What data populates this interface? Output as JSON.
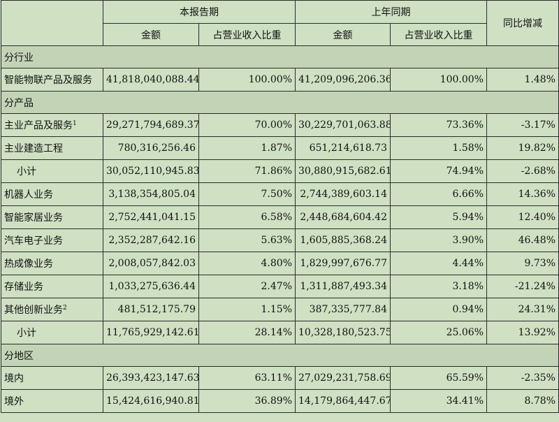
{
  "header": {
    "current_period": "本报告期",
    "prior_period": "上年同期",
    "yoy_change": "同比增减",
    "amount": "金额",
    "share": "占营业收入比重"
  },
  "sections": [
    {
      "title": "分行业",
      "rows": [
        {
          "label": "智能物联产品及服务",
          "note": "",
          "indent": false,
          "cur_amount": "41,818,040,088.44",
          "cur_share": "100.00%",
          "prev_amount": "41,209,096,206.36",
          "prev_share": "100.00%",
          "yoy": "1.48%"
        }
      ]
    },
    {
      "title": "分产品",
      "rows": [
        {
          "label": "主业产品及服务",
          "note": "1",
          "indent": false,
          "cur_amount": "29,271,794,689.37",
          "cur_share": "70.00%",
          "prev_amount": "30,229,701,063.88",
          "prev_share": "73.36%",
          "yoy": "-3.17%"
        },
        {
          "label": "主业建造工程",
          "note": "",
          "indent": false,
          "cur_amount": "780,316,256.46",
          "cur_share": "1.87%",
          "prev_amount": "651,214,618.73",
          "prev_share": "1.58%",
          "yoy": "19.82%"
        },
        {
          "label": "小计",
          "note": "",
          "indent": true,
          "cur_amount": "30,052,110,945.83",
          "cur_share": "71.86%",
          "prev_amount": "30,880,915,682.61",
          "prev_share": "74.94%",
          "yoy": "-2.68%"
        },
        {
          "label": "机器人业务",
          "note": "",
          "indent": false,
          "cur_amount": "3,138,354,805.04",
          "cur_share": "7.50%",
          "prev_amount": "2,744,389,603.14",
          "prev_share": "6.66%",
          "yoy": "14.36%"
        },
        {
          "label": "智能家居业务",
          "note": "",
          "indent": false,
          "cur_amount": "2,752,441,041.15",
          "cur_share": "6.58%",
          "prev_amount": "2,448,684,604.42",
          "prev_share": "5.94%",
          "yoy": "12.40%"
        },
        {
          "label": "汽车电子业务",
          "note": "",
          "indent": false,
          "cur_amount": "2,352,287,642.16",
          "cur_share": "5.63%",
          "prev_amount": "1,605,885,368.24",
          "prev_share": "3.90%",
          "yoy": "46.48%"
        },
        {
          "label": "热成像业务",
          "note": "",
          "indent": false,
          "cur_amount": "2,008,057,842.03",
          "cur_share": "4.80%",
          "prev_amount": "1,829,997,676.77",
          "prev_share": "4.44%",
          "yoy": "9.73%"
        },
        {
          "label": "存储业务",
          "note": "",
          "indent": false,
          "cur_amount": "1,033,275,636.44",
          "cur_share": "2.47%",
          "prev_amount": "1,311,887,493.34",
          "prev_share": "3.18%",
          "yoy": "-21.24%"
        },
        {
          "label": "其他创新业务",
          "note": "2",
          "indent": false,
          "cur_amount": "481,512,175.79",
          "cur_share": "1.15%",
          "prev_amount": "387,335,777.84",
          "prev_share": "0.94%",
          "yoy": "24.31%"
        },
        {
          "label": "小计",
          "note": "",
          "indent": true,
          "cur_amount": "11,765,929,142.61",
          "cur_share": "28.14%",
          "prev_amount": "10,328,180,523.75",
          "prev_share": "25.06%",
          "yoy": "13.92%"
        }
      ]
    },
    {
      "title": "分地区",
      "rows": [
        {
          "label": "境内",
          "note": "",
          "indent": false,
          "cur_amount": "26,393,423,147.63",
          "cur_share": "63.11%",
          "prev_amount": "27,029,231,758.69",
          "prev_share": "65.59%",
          "yoy": "-2.35%"
        },
        {
          "label": "境外",
          "note": "",
          "indent": false,
          "cur_amount": "15,424,616,940.81",
          "cur_share": "36.89%",
          "prev_amount": "14,179,864,447.67",
          "prev_share": "34.41%",
          "yoy": "8.78%"
        }
      ]
    }
  ]
}
